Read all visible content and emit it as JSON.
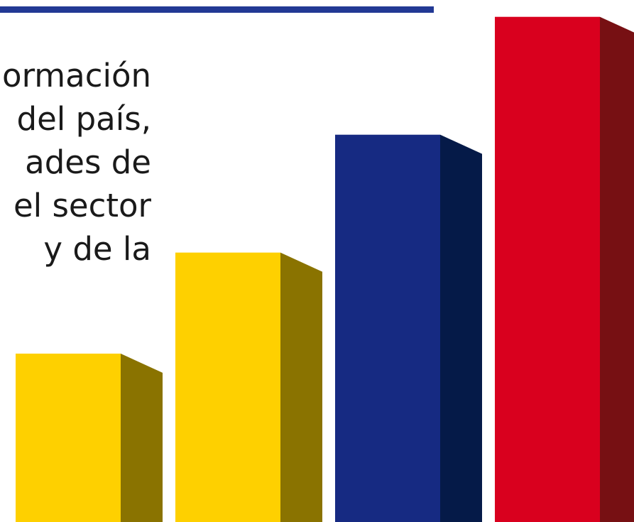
{
  "text_lines": [
    "ormación",
    "del país,",
    "ades de",
    "el sector",
    "y de la"
  ],
  "colors": {
    "rule": "#223994",
    "text": "#1a1a1a",
    "yellow_front": "#fed000",
    "yellow_side": "#8a7300",
    "blue_front": "#162a82",
    "blue_side": "#051a48",
    "red_front": "#d9001e",
    "red_side": "#771013"
  },
  "chart_data": {
    "type": "bar",
    "categories": [
      "",
      "",
      "",
      ""
    ],
    "values": [
      2,
      3.2,
      4.6,
      6
    ],
    "ylim": [
      0,
      6.2
    ],
    "colors": [
      "yellow",
      "yellow",
      "blue",
      "red"
    ],
    "style": "3d",
    "title": "",
    "xlabel": "",
    "ylabel": ""
  }
}
